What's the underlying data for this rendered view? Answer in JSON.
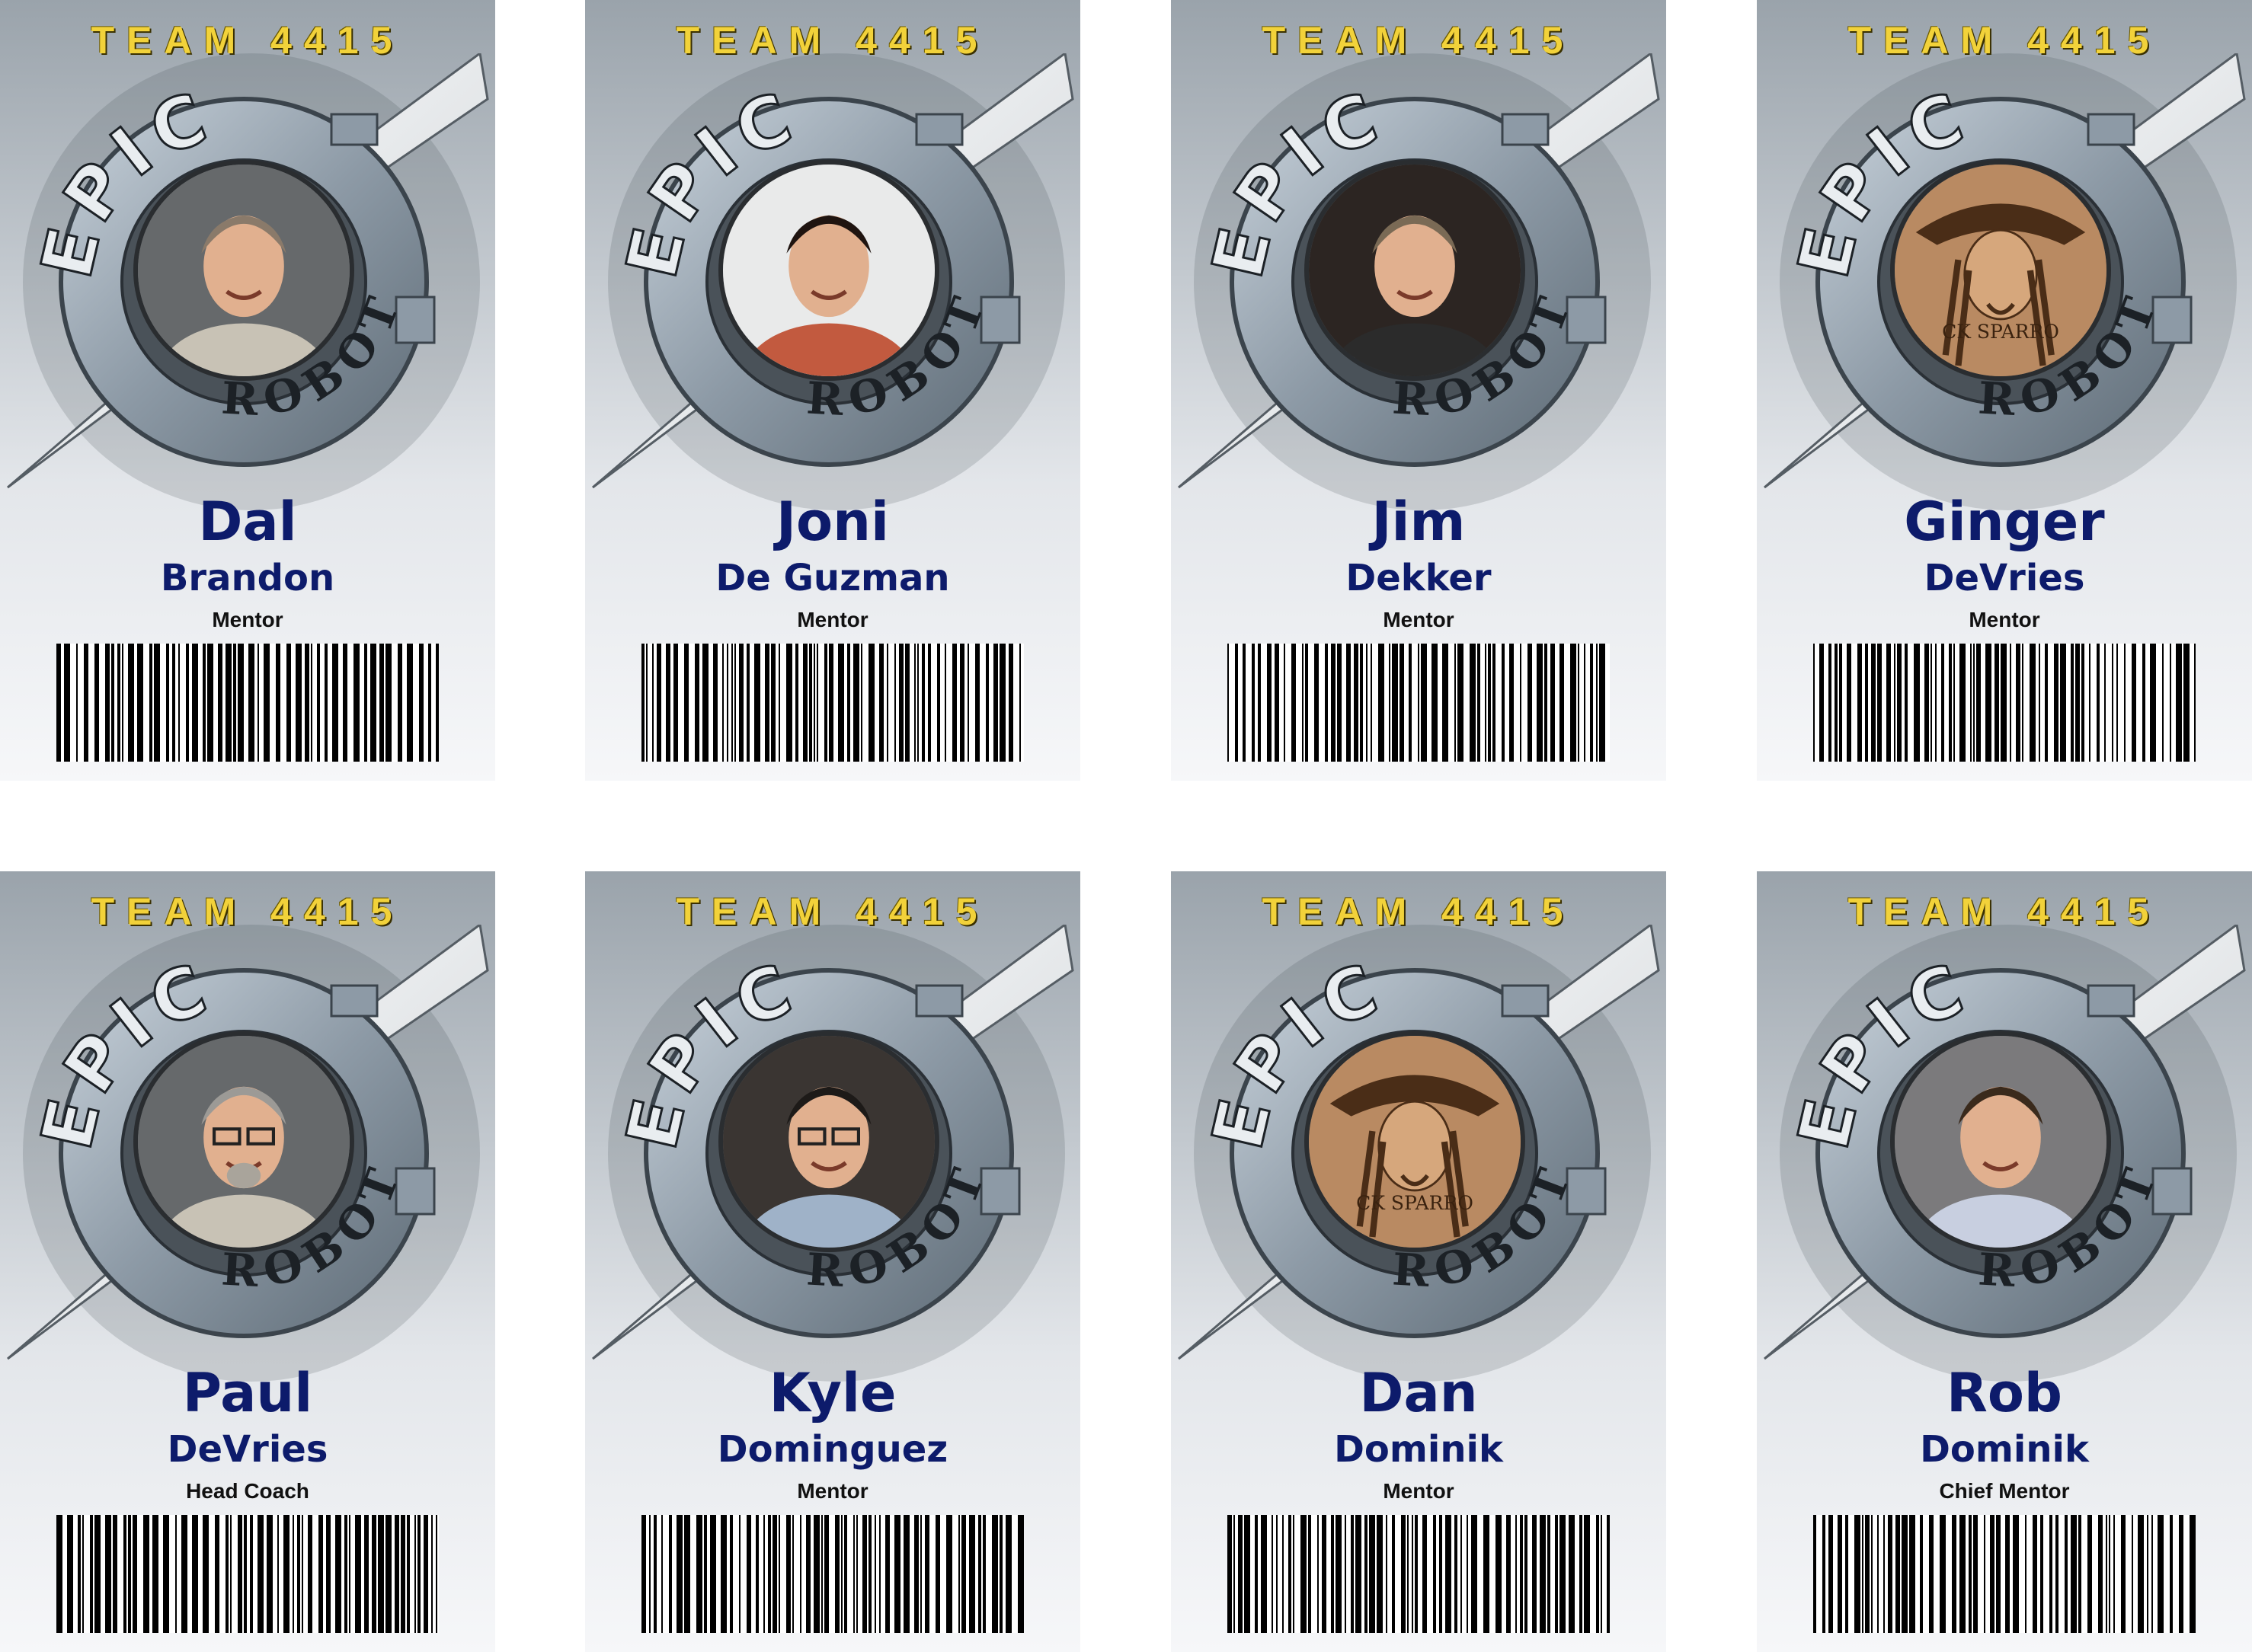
{
  "cards": [
    {
      "team": "TEAM 4415",
      "logo_top": "EPIC",
      "logo_bottom": "ROBOTZ",
      "first": "Dal",
      "last": "Brandon",
      "role": "Mentor",
      "photo": "man-gray-hair-photo"
    },
    {
      "team": "TEAM 4415",
      "logo_top": "EPIC",
      "logo_bottom": "ROBOTZ",
      "first": "Joni",
      "last": "De Guzman",
      "role": "Mentor",
      "photo": "woman-dark-hair-photo"
    },
    {
      "team": "TEAM 4415",
      "logo_top": "EPIC",
      "logo_bottom": "ROBOTZ",
      "first": "Jim",
      "last": "Dekker",
      "role": "Mentor",
      "photo": "man-short-hair-photo"
    },
    {
      "team": "TEAM 4415",
      "logo_top": "EPIC",
      "logo_bottom": "ROBOTZ",
      "first": "Ginger",
      "last": "DeVries",
      "role": "Mentor",
      "photo": "pirate-sketch-photo"
    },
    {
      "team": "TEAM 4415",
      "logo_top": "EPIC",
      "logo_bottom": "ROBOTZ",
      "first": "Paul",
      "last": "DeVries",
      "role": "Head Coach",
      "photo": "man-glasses-goatee-photo"
    },
    {
      "team": "TEAM 4415",
      "logo_top": "EPIC",
      "logo_bottom": "ROBOTZ",
      "first": "Kyle",
      "last": "Dominguez",
      "role": "Mentor",
      "photo": "man-glasses-photo"
    },
    {
      "team": "TEAM 4415",
      "logo_top": "EPIC",
      "logo_bottom": "ROBOTZ",
      "first": "Dan",
      "last": "Dominik",
      "role": "Mentor",
      "photo": "pirate-sketch-photo"
    },
    {
      "team": "TEAM 4415",
      "logo_top": "EPIC",
      "logo_bottom": "ROBOTZ",
      "first": "Rob",
      "last": "Dominik",
      "role": "Chief Mentor",
      "photo": "man-tie-photo"
    }
  ],
  "colors": {
    "team_text": "#f2d23a",
    "name_text": "#0d1b6b",
    "role_text": "#111111"
  }
}
